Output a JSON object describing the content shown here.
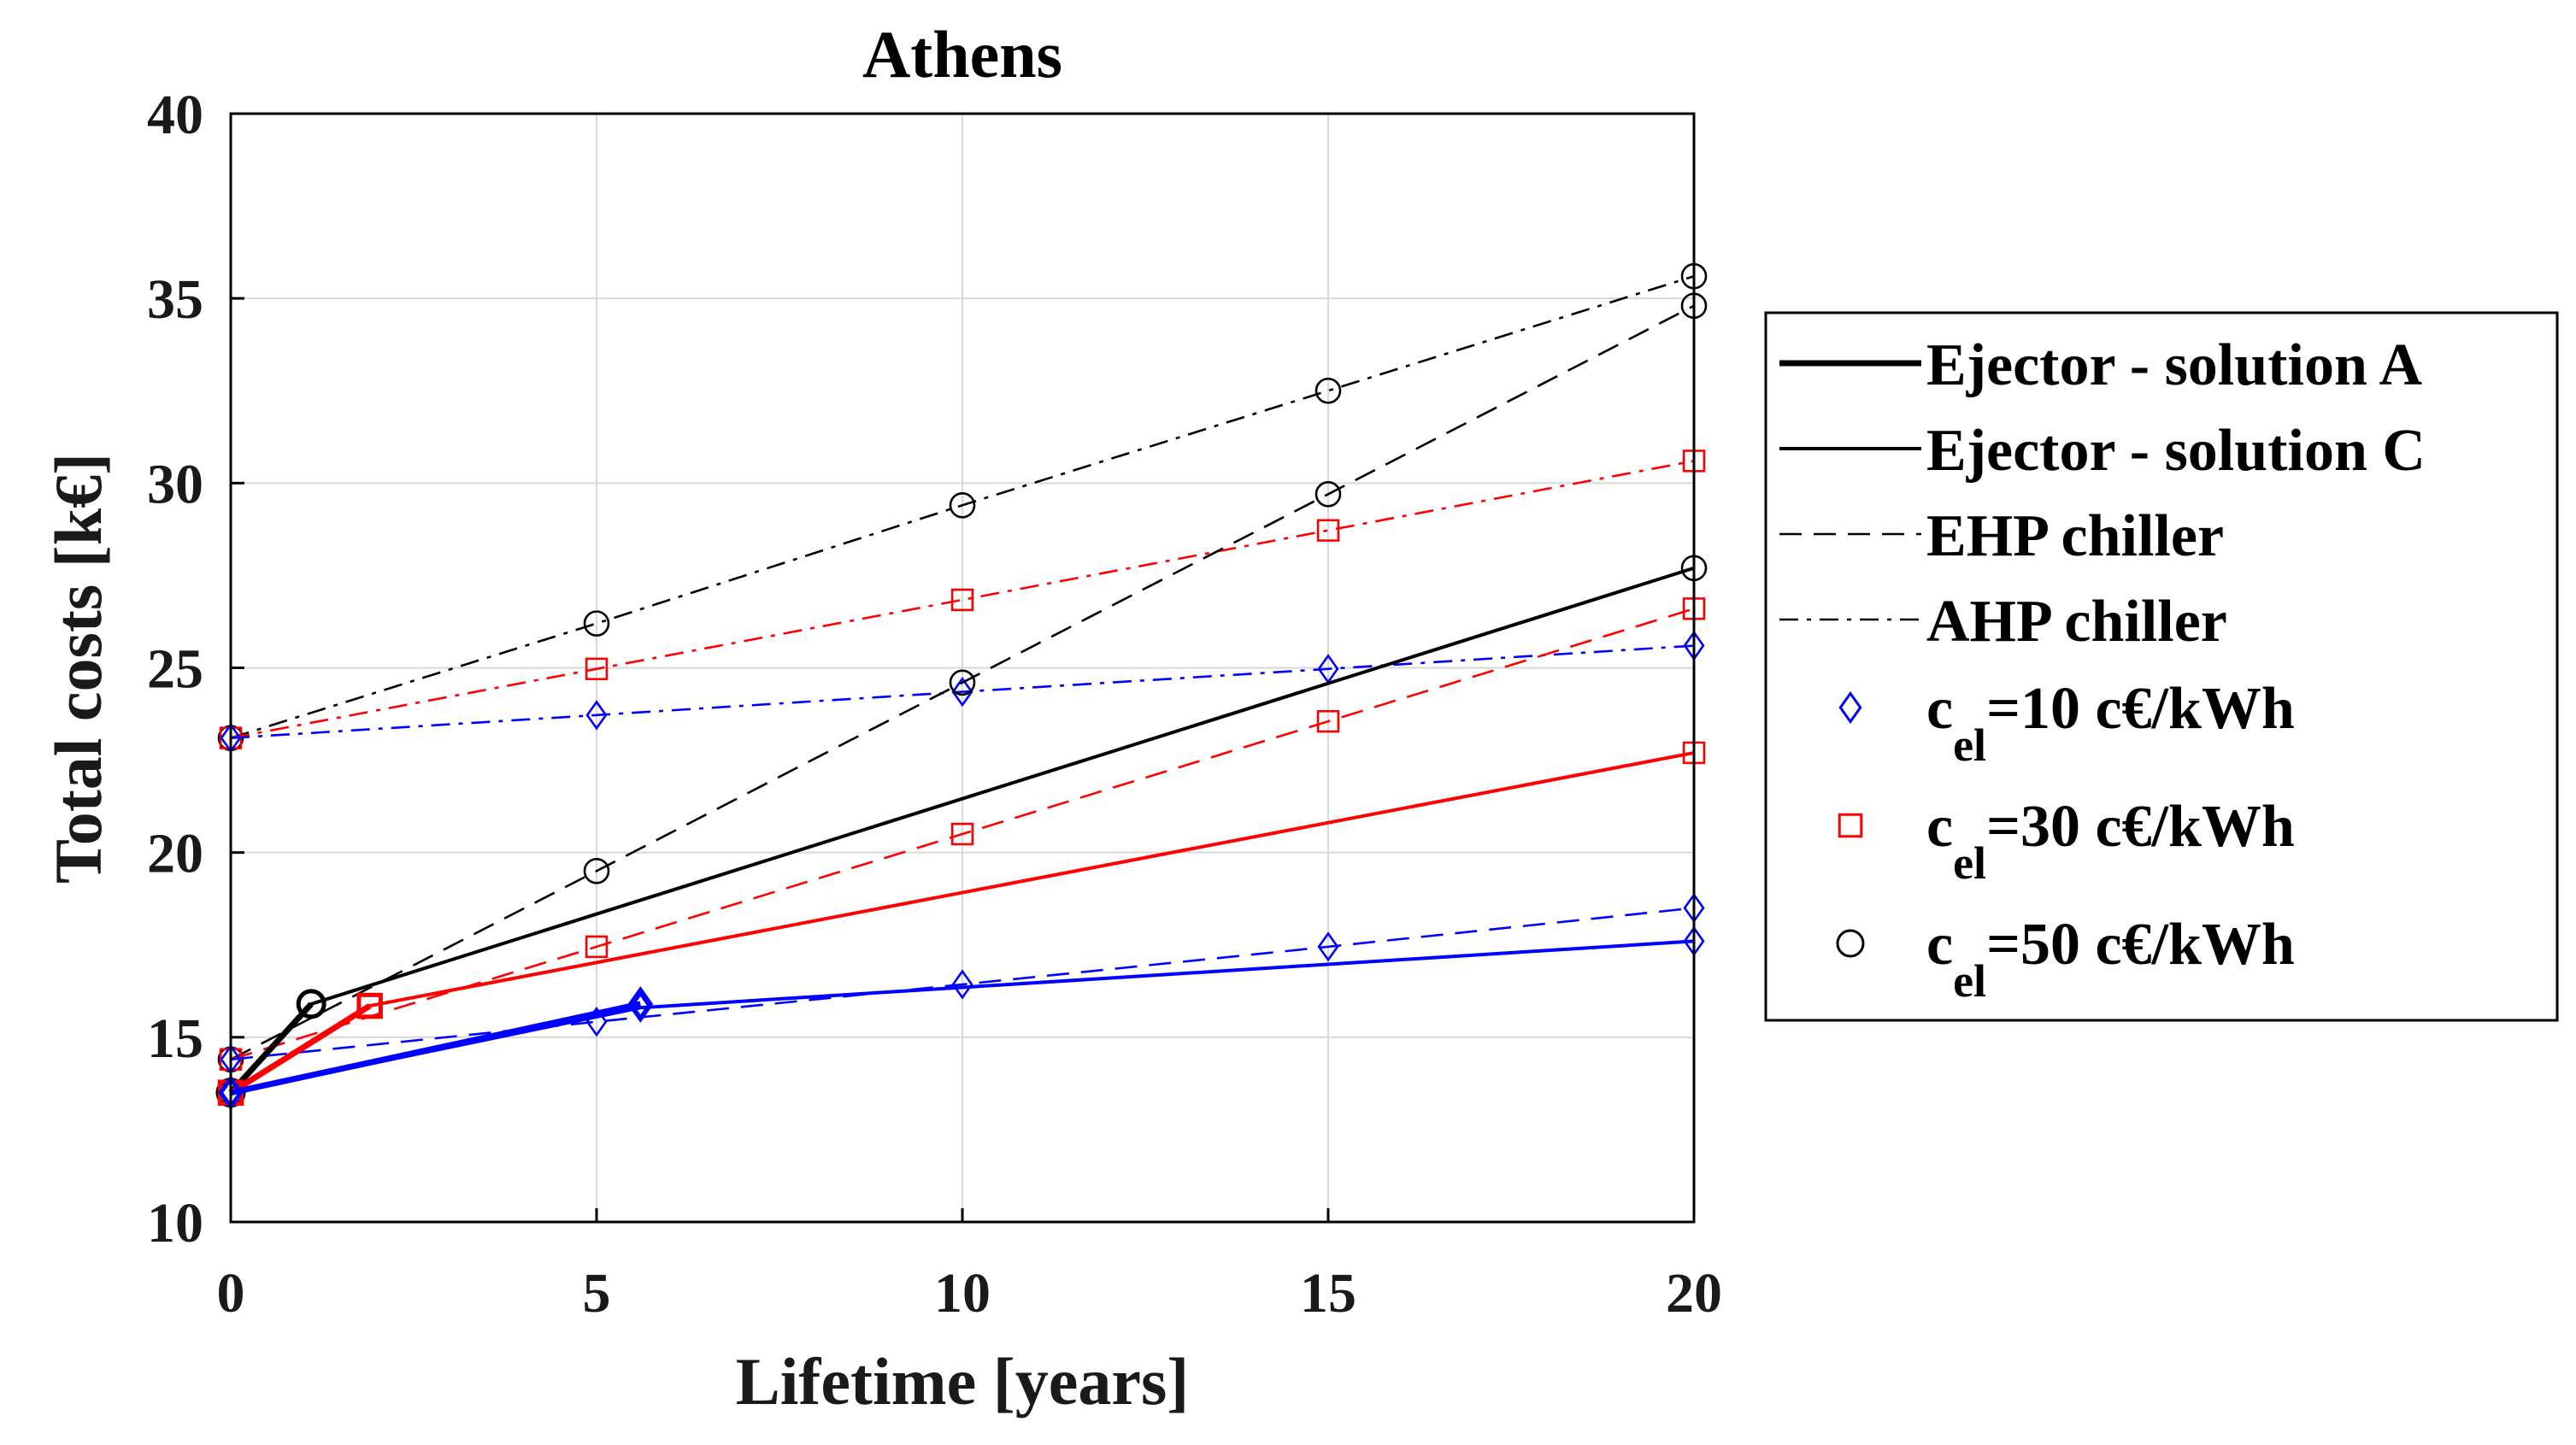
{
  "chart_data": {
    "type": "line",
    "title": "Athens",
    "xlabel": "Lifetime [years]",
    "ylabel": "Total costs [k€]",
    "xlim": [
      0,
      20
    ],
    "ylim": [
      10,
      40
    ],
    "xticks": [
      0,
      5,
      10,
      15,
      20
    ],
    "yticks": [
      10,
      15,
      20,
      25,
      30,
      35,
      40
    ],
    "xtick_labels": [
      "0",
      "5",
      "10",
      "15",
      "20"
    ],
    "ytick_labels": [
      "10",
      "15",
      "20",
      "25",
      "30",
      "35",
      "40"
    ],
    "grid": true,
    "colors": {
      "blue": "#0000ff",
      "red": "#ff0000",
      "black": "#000000"
    },
    "legend": {
      "placement": "right",
      "entries": [
        {
          "label": "Ejector - solution A",
          "kind": "line",
          "style": "thick-solid"
        },
        {
          "label": "Ejector - solution C",
          "kind": "line",
          "style": "solid"
        },
        {
          "label": "EHP chiller",
          "kind": "line",
          "style": "dashed"
        },
        {
          "label": "AHP chiller",
          "kind": "line",
          "style": "dashdot"
        },
        {
          "label_main": "c",
          "label_sub": "el",
          "label_rest": "=10 c€/kWh",
          "kind": "marker",
          "marker": "diamond",
          "color": "blue"
        },
        {
          "label_main": "c",
          "label_sub": "el",
          "label_rest": "=30 c€/kWh",
          "kind": "marker",
          "marker": "square",
          "color": "red"
        },
        {
          "label_main": "c",
          "label_sub": "el",
          "label_rest": "=50 c€/kWh",
          "kind": "marker",
          "marker": "circle",
          "color": "black"
        }
      ]
    },
    "series": [
      {
        "name": "AHP chiller, c_el=50",
        "style": "dashdot",
        "color": "black",
        "marker": "circle",
        "x": [
          0,
          5,
          10,
          15,
          20
        ],
        "y": [
          23.1,
          26.2,
          29.4,
          32.5,
          35.6
        ]
      },
      {
        "name": "AHP chiller, c_el=30",
        "style": "dashdot",
        "color": "red",
        "marker": "square",
        "x": [
          0,
          5,
          10,
          15,
          20
        ],
        "y": [
          23.1,
          24.97,
          26.84,
          28.72,
          30.6
        ]
      },
      {
        "name": "AHP chiller, c_el=10",
        "style": "dashdot",
        "color": "blue",
        "marker": "diamond",
        "x": [
          0,
          5,
          10,
          15,
          20
        ],
        "y": [
          23.1,
          23.72,
          24.35,
          24.97,
          25.6
        ]
      },
      {
        "name": "EHP chiller, c_el=50",
        "style": "dashed",
        "color": "black",
        "marker": "circle",
        "x": [
          0,
          5,
          10,
          15,
          20
        ],
        "y": [
          14.4,
          19.5,
          24.6,
          29.7,
          34.8
        ]
      },
      {
        "name": "EHP chiller, c_el=30",
        "style": "dashed",
        "color": "red",
        "marker": "square",
        "x": [
          0,
          5,
          10,
          15,
          20
        ],
        "y": [
          14.4,
          17.45,
          20.5,
          23.55,
          26.6
        ]
      },
      {
        "name": "EHP chiller, c_el=10",
        "style": "dashed",
        "color": "blue",
        "marker": "diamond",
        "x": [
          0,
          5,
          10,
          15,
          20
        ],
        "y": [
          14.4,
          15.42,
          16.43,
          17.45,
          18.5
        ]
      },
      {
        "name": "Ejector - solution C, c_el=50",
        "style": "solid",
        "color": "black",
        "marker": "circle",
        "x": [
          0,
          1.1,
          20
        ],
        "y": [
          13.5,
          15.9,
          27.7
        ]
      },
      {
        "name": "Ejector - solution C, c_el=30",
        "style": "solid",
        "color": "red",
        "marker": "square",
        "x": [
          0,
          1.9,
          20
        ],
        "y": [
          13.5,
          15.85,
          22.7
        ]
      },
      {
        "name": "Ejector - solution C, c_el=10",
        "style": "solid",
        "color": "blue",
        "marker": "diamond",
        "x": [
          0,
          5.6,
          20
        ],
        "y": [
          13.5,
          15.8,
          17.6
        ]
      },
      {
        "name": "Ejector - solution A, c_el=50",
        "style": "thick-solid",
        "color": "black",
        "marker": "circle",
        "x": [
          0,
          1.1
        ],
        "y": [
          13.5,
          15.9
        ]
      },
      {
        "name": "Ejector - solution A, c_el=30",
        "style": "thick-solid",
        "color": "red",
        "marker": "square",
        "x": [
          0,
          1.9
        ],
        "y": [
          13.5,
          15.85
        ]
      },
      {
        "name": "Ejector - solution A, c_el=10",
        "style": "thick-solid",
        "color": "blue",
        "marker": "diamond",
        "x": [
          0,
          5.6
        ],
        "y": [
          13.5,
          15.9
        ]
      }
    ]
  }
}
